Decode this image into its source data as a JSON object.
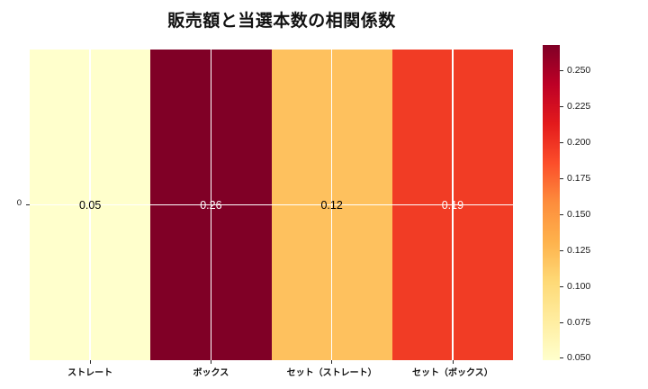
{
  "title": "販売額と当選本数の相関係数",
  "heatmap": {
    "row_label": "0",
    "cells": [
      {
        "label": "ストレート",
        "value": "0.05",
        "color": "#FFFFCC",
        "text_color": "#000000"
      },
      {
        "label": "ボックス",
        "value": "0.26",
        "color": "#800026",
        "text_color": "#FFFFFF"
      },
      {
        "label": "セット（ストレート）",
        "value": "0.12",
        "color": "#FEC15E",
        "text_color": "#000000"
      },
      {
        "label": "セット（ボックス）",
        "value": "0.19",
        "color": "#F13C25",
        "text_color": "#FFFFFF"
      }
    ],
    "gridline_color": "#FFFFFF"
  },
  "colorbar": {
    "ticks": [
      "0.250",
      "0.225",
      "0.200",
      "0.175",
      "0.150",
      "0.125",
      "0.100",
      "0.075",
      "0.050"
    ],
    "top_color": "#800026",
    "bottom_color": "#FFFFCC"
  },
  "chart_data": {
    "type": "heatmap",
    "title": "販売額と当選本数の相関係数",
    "categories": [
      "ストレート",
      "ボックス",
      "セット（ストレート）",
      "セット（ボックス）"
    ],
    "rows": [
      "0"
    ],
    "values": [
      [
        0.05,
        0.26,
        0.12,
        0.19
      ]
    ],
    "colormap": "YlOrRd",
    "colorbar_ticks": [
      0.05,
      0.075,
      0.1,
      0.125,
      0.15,
      0.175,
      0.2,
      0.225,
      0.25
    ],
    "colorbar_range": [
      0.05,
      0.26
    ],
    "grid": true,
    "legend_position": "right-colorbar"
  }
}
